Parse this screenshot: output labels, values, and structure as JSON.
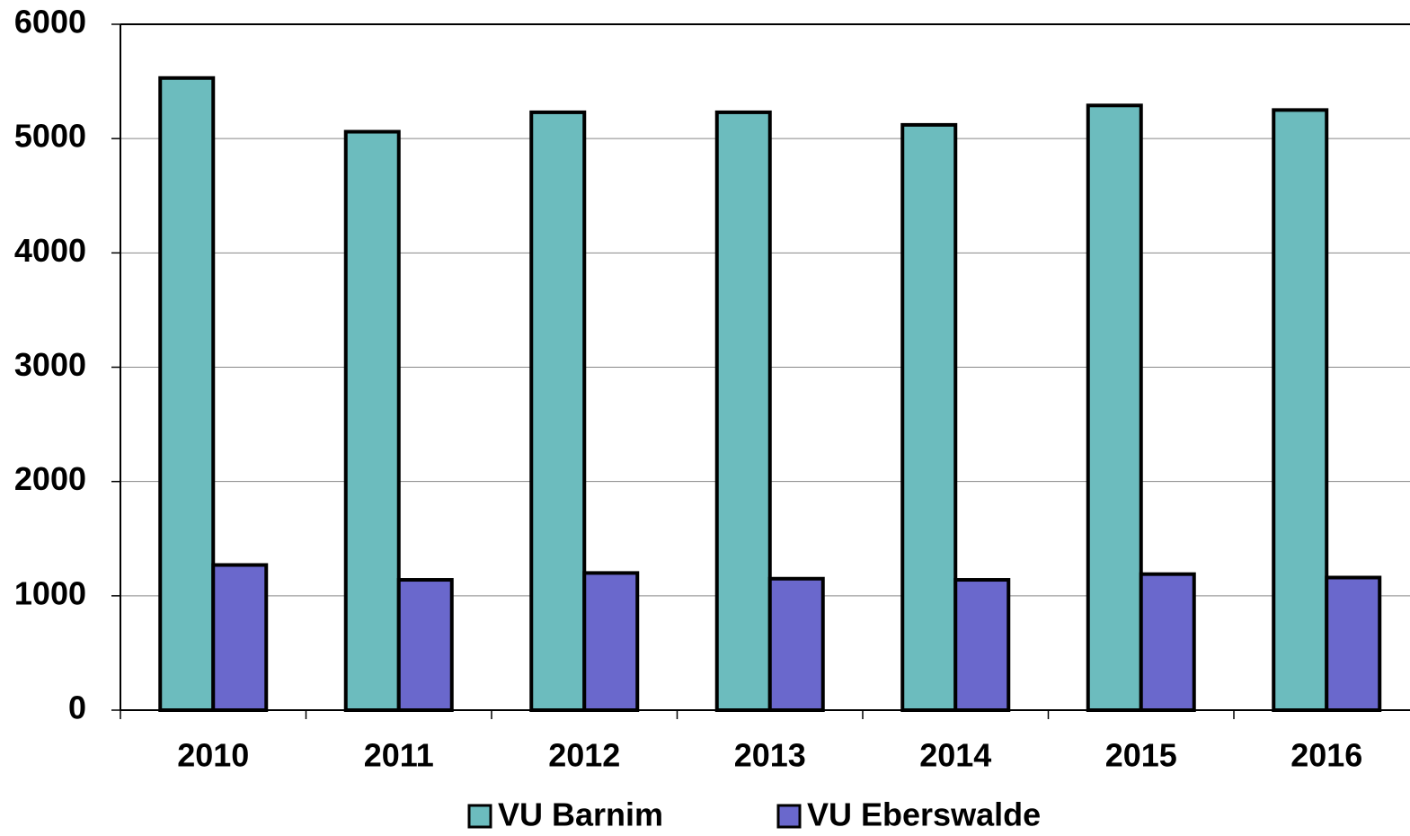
{
  "chart_data": {
    "type": "bar",
    "categories": [
      "2010",
      "2011",
      "2012",
      "2013",
      "2014",
      "2015",
      "2016"
    ],
    "series": [
      {
        "name": "VU Barnim",
        "color": "#6cbcbe",
        "values": [
          5530,
          5060,
          5230,
          5230,
          5120,
          5290,
          5250
        ]
      },
      {
        "name": "VU Eberswalde",
        "color": "#6a68cc",
        "values": [
          1270,
          1140,
          1200,
          1150,
          1140,
          1190,
          1160
        ]
      }
    ],
    "ylim": [
      0,
      6000
    ],
    "yticks": [
      0,
      1000,
      2000,
      3000,
      4000,
      5000,
      6000
    ],
    "grid": true
  }
}
